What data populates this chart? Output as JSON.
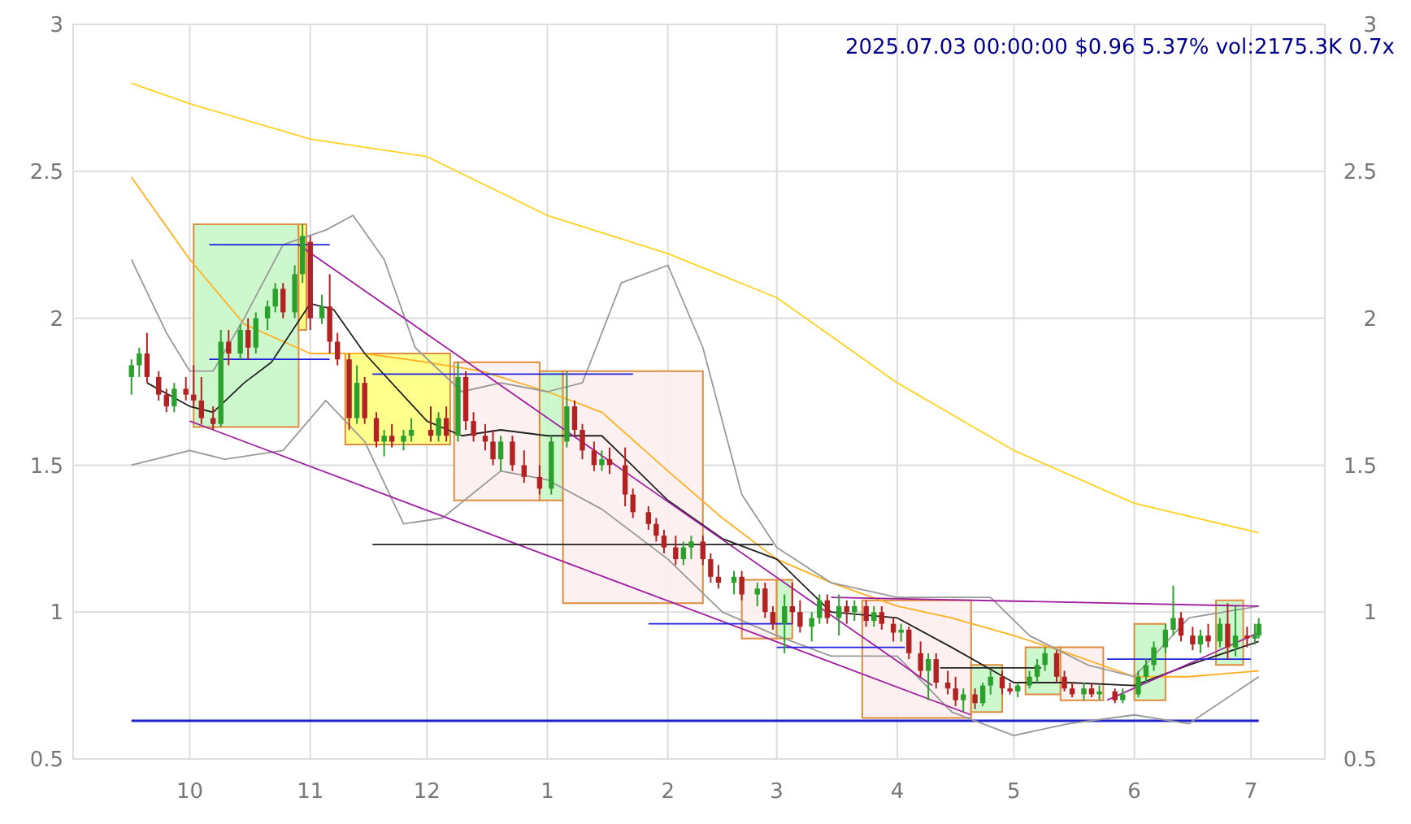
{
  "chart_data": {
    "type": "candlestick",
    "title": "2025.07.03 00:00:00 $0.96 5.37% vol:2175.3K 0.7x",
    "xlim": [
      "2024-09-01",
      "2025-07-20"
    ],
    "xticks": [
      {
        "value": "2024-10-01",
        "label": "10"
      },
      {
        "value": "2024-11-01",
        "label": "11"
      },
      {
        "value": "2024-12-01",
        "label": "12"
      },
      {
        "value": "2025-01-01",
        "label": "1"
      },
      {
        "value": "2025-02-01",
        "label": "2"
      },
      {
        "value": "2025-03-01",
        "label": "3"
      },
      {
        "value": "2025-04-01",
        "label": "4"
      },
      {
        "value": "2025-05-01",
        "label": "5"
      },
      {
        "value": "2025-06-01",
        "label": "6"
      },
      {
        "value": "2025-07-01",
        "label": "7"
      }
    ],
    "ylim": [
      0.5,
      3.0
    ],
    "yticks": [
      0.5,
      1.0,
      1.5,
      2.0,
      2.5,
      3.0
    ],
    "y2lim": [
      0.5,
      3.0
    ],
    "y2ticks": [
      0.5,
      1.0,
      1.5,
      2.0,
      2.5,
      3.0
    ],
    "grid": true,
    "ref_lines": [
      {
        "axis": "y",
        "value": 0.63,
        "color": "#1f1fd0"
      }
    ],
    "series": [
      {
        "type": "area",
        "color": "#c8f7c8",
        "x": [
          "2024-10-02",
          "2024-10-02",
          "2024-10-29",
          "2024-10-29",
          "2024-10-02"
        ],
        "values": [
          1.63,
          2.32,
          2.32,
          1.63,
          1.63
        ]
      },
      {
        "type": "area",
        "color": "#ffff80",
        "x": [
          "2024-10-29",
          "2024-10-29",
          "2024-10-31",
          "2024-10-31",
          "2024-10-29"
        ],
        "values": [
          1.96,
          2.32,
          2.32,
          1.96,
          1.96
        ]
      },
      {
        "type": "area",
        "color": "#ffff80",
        "x": [
          "2024-11-10",
          "2024-11-10",
          "2024-12-07",
          "2024-12-07",
          "2024-11-10"
        ],
        "values": [
          1.57,
          1.88,
          1.88,
          1.57,
          1.57
        ]
      },
      {
        "type": "area",
        "color": "#fdeeee",
        "x": [
          "2024-12-08",
          "2024-12-08",
          "2024-12-30",
          "2024-12-30",
          "2024-12-08"
        ],
        "values": [
          1.38,
          1.85,
          1.85,
          1.38,
          1.38
        ]
      },
      {
        "type": "area",
        "color": "#c8f7c8",
        "x": [
          "2024-12-30",
          "2024-12-30",
          "2025-01-05",
          "2025-01-05",
          "2024-12-30"
        ],
        "values": [
          1.38,
          1.82,
          1.82,
          1.38,
          1.38
        ]
      },
      {
        "type": "area",
        "color": "#fdeeee",
        "x": [
          "2025-01-05",
          "2025-01-05",
          "2025-02-10",
          "2025-02-10",
          "2025-01-05"
        ],
        "values": [
          1.03,
          1.82,
          1.82,
          1.03,
          1.03
        ]
      },
      {
        "type": "area",
        "color": "#fdeeee",
        "x": [
          "2025-02-20",
          "2025-02-20",
          "2025-03-01",
          "2025-03-01",
          "2025-02-20"
        ],
        "values": [
          0.91,
          1.11,
          1.11,
          0.91,
          0.91
        ]
      },
      {
        "type": "area",
        "color": "#c8f7c8",
        "x": [
          "2025-03-01",
          "2025-03-01",
          "2025-03-05",
          "2025-03-05",
          "2025-03-01"
        ],
        "values": [
          0.91,
          1.11,
          1.11,
          0.91,
          0.91
        ]
      },
      {
        "type": "area",
        "color": "#fdeeee",
        "x": [
          "2025-03-23",
          "2025-03-23",
          "2025-04-20",
          "2025-04-20",
          "2025-03-23"
        ],
        "values": [
          0.64,
          1.04,
          1.04,
          0.64,
          0.64
        ]
      },
      {
        "type": "area",
        "color": "#c8f7c8",
        "x": [
          "2025-04-20",
          "2025-04-20",
          "2025-04-28",
          "2025-04-28",
          "2025-04-20"
        ],
        "values": [
          0.66,
          0.82,
          0.82,
          0.66,
          0.66
        ]
      },
      {
        "type": "area",
        "color": "#c8f7c8",
        "x": [
          "2025-05-04",
          "2025-05-04",
          "2025-05-13",
          "2025-05-13",
          "2025-05-04"
        ],
        "values": [
          0.72,
          0.88,
          0.88,
          0.72,
          0.72
        ]
      },
      {
        "type": "area",
        "color": "#fdeeee",
        "x": [
          "2025-05-13",
          "2025-05-13",
          "2025-05-24",
          "2025-05-24",
          "2025-05-13"
        ],
        "values": [
          0.7,
          0.88,
          0.88,
          0.7,
          0.7
        ]
      },
      {
        "type": "area",
        "color": "#c8f7c8",
        "x": [
          "2025-06-01",
          "2025-06-01",
          "2025-06-09",
          "2025-06-09",
          "2025-06-01"
        ],
        "values": [
          0.7,
          0.96,
          0.96,
          0.7,
          0.7
        ]
      },
      {
        "type": "area",
        "color": "#c8f7c8",
        "x": [
          "2025-06-22",
          "2025-06-22",
          "2025-06-29",
          "2025-06-29",
          "2025-06-22"
        ],
        "values": [
          0.82,
          1.04,
          1.04,
          0.82,
          0.82
        ]
      },
      {
        "type": "line",
        "color": "#ffd21f",
        "x": [
          "2024-09-16",
          "2024-10-01",
          "2024-11-01",
          "2024-12-01",
          "2025-01-01",
          "2025-02-01",
          "2025-03-01",
          "2025-04-01",
          "2025-05-01",
          "2025-06-01",
          "2025-07-03"
        ],
        "values": [
          2.8,
          2.73,
          2.61,
          2.55,
          2.35,
          2.22,
          2.07,
          1.78,
          1.55,
          1.37,
          1.27
        ]
      },
      {
        "type": "line",
        "color": "#ffb020",
        "x": [
          "2024-09-16",
          "2024-10-01",
          "2024-10-15",
          "2024-11-01",
          "2024-11-15",
          "2024-12-01",
          "2024-12-15",
          "2025-01-01",
          "2025-01-15",
          "2025-02-01",
          "2025-02-15",
          "2025-03-01",
          "2025-03-15",
          "2025-04-01",
          "2025-04-15",
          "2025-05-01",
          "2025-05-15",
          "2025-06-01",
          "2025-06-15",
          "2025-07-03"
        ],
        "values": [
          2.48,
          2.2,
          1.98,
          1.88,
          1.88,
          1.85,
          1.82,
          1.75,
          1.68,
          1.48,
          1.32,
          1.18,
          1.1,
          1.02,
          0.98,
          0.92,
          0.86,
          0.78,
          0.78,
          0.8
        ]
      },
      {
        "type": "line",
        "color": "#222222",
        "x": [
          "2024-09-20",
          "2024-10-01",
          "2024-10-07",
          "2024-10-15",
          "2024-10-22",
          "2024-11-01",
          "2024-11-07",
          "2024-11-15",
          "2024-12-01",
          "2024-12-10",
          "2024-12-20",
          "2025-01-01",
          "2025-01-15",
          "2025-02-01",
          "2025-02-15",
          "2025-03-01",
          "2025-03-15",
          "2025-04-01",
          "2025-04-15",
          "2025-05-01",
          "2025-05-15",
          "2025-06-01",
          "2025-06-15",
          "2025-07-03"
        ],
        "values": [
          1.78,
          1.7,
          1.68,
          1.78,
          1.85,
          2.05,
          2.03,
          1.88,
          1.65,
          1.6,
          1.62,
          1.6,
          1.6,
          1.38,
          1.25,
          1.18,
          1.0,
          0.98,
          0.88,
          0.76,
          0.76,
          0.75,
          0.82,
          0.9
        ]
      },
      {
        "type": "line",
        "color": "#999999",
        "x": [
          "2024-09-16",
          "2024-09-25",
          "2024-10-01",
          "2024-10-07",
          "2024-10-15",
          "2024-10-25",
          "2024-11-05",
          "2024-11-12",
          "2024-11-20",
          "2024-11-28",
          "2024-12-10",
          "2024-12-20",
          "2025-01-01",
          "2025-01-10",
          "2025-01-20",
          "2025-02-01",
          "2025-02-10",
          "2025-02-20",
          "2025-03-01",
          "2025-03-15",
          "2025-04-01",
          "2025-04-15",
          "2025-04-25",
          "2025-05-05",
          "2025-05-20",
          "2025-06-01",
          "2025-06-15",
          "2025-07-03"
        ],
        "values": [
          2.2,
          1.95,
          1.82,
          1.82,
          2.0,
          2.25,
          2.3,
          2.35,
          2.2,
          1.9,
          1.75,
          1.78,
          1.75,
          1.78,
          2.12,
          2.18,
          1.9,
          1.4,
          1.22,
          1.1,
          1.05,
          1.05,
          1.05,
          0.92,
          0.82,
          0.78,
          0.98,
          1.02
        ]
      },
      {
        "type": "line",
        "color": "#999999",
        "x": [
          "2024-09-16",
          "2024-10-01",
          "2024-10-10",
          "2024-10-25",
          "2024-11-05",
          "2024-11-15",
          "2024-11-25",
          "2024-12-05",
          "2024-12-20",
          "2025-01-01",
          "2025-01-15",
          "2025-02-01",
          "2025-02-15",
          "2025-03-01",
          "2025-03-15",
          "2025-04-01",
          "2025-04-15",
          "2025-05-01",
          "2025-05-15",
          "2025-06-01",
          "2025-06-15",
          "2025-07-03"
        ],
        "values": [
          1.5,
          1.55,
          1.52,
          1.55,
          1.72,
          1.58,
          1.3,
          1.32,
          1.48,
          1.45,
          1.35,
          1.18,
          1.0,
          0.92,
          0.85,
          0.85,
          0.66,
          0.58,
          0.62,
          0.65,
          0.62,
          0.78
        ]
      },
      {
        "type": "line",
        "color": "#a020a0",
        "x": [
          "2024-10-01",
          "2025-04-20"
        ],
        "values": [
          1.65,
          0.65
        ]
      },
      {
        "type": "line",
        "color": "#a020a0",
        "x": [
          "2024-10-29",
          "2025-04-10"
        ],
        "values": [
          2.25,
          0.75
        ]
      },
      {
        "type": "line",
        "color": "#a020a0",
        "x": [
          "2025-03-15",
          "2025-07-03"
        ],
        "values": [
          1.05,
          1.02
        ]
      },
      {
        "type": "line",
        "color": "#a020a0",
        "x": [
          "2025-05-25",
          "2025-07-03"
        ],
        "values": [
          0.7,
          0.93
        ]
      },
      {
        "type": "line",
        "color": "#1f1fe0",
        "x": [
          "2024-10-06",
          "2024-11-06"
        ],
        "values": [
          2.25,
          2.25
        ]
      },
      {
        "type": "line",
        "color": "#1f1fe0",
        "x": [
          "2024-10-06",
          "2024-11-06"
        ],
        "values": [
          1.86,
          1.86
        ]
      },
      {
        "type": "line",
        "color": "#1f1fe0",
        "x": [
          "2024-11-17",
          "2025-01-23"
        ],
        "values": [
          1.81,
          1.81
        ]
      },
      {
        "type": "line",
        "color": "#1f1fe0",
        "x": [
          "2025-01-27",
          "2025-03-05"
        ],
        "values": [
          0.96,
          0.96
        ]
      },
      {
        "type": "line",
        "color": "#1f1fe0",
        "x": [
          "2025-03-01",
          "2025-04-03"
        ],
        "values": [
          0.88,
          0.88
        ]
      },
      {
        "type": "line",
        "color": "#1f1fe0",
        "x": [
          "2025-05-25",
          "2025-07-01"
        ],
        "values": [
          0.84,
          0.84
        ]
      },
      {
        "type": "line",
        "color": "#222222",
        "x": [
          "2024-11-17",
          "2025-02-28"
        ],
        "values": [
          1.23,
          1.23
        ]
      },
      {
        "type": "line",
        "color": "#222222",
        "x": [
          "2025-04-12",
          "2025-05-08"
        ],
        "values": [
          0.81,
          0.81
        ]
      },
      {
        "x": [
          "2024-09-16",
          "2024-09-18",
          "2024-09-20",
          "2024-09-23",
          "2024-09-25",
          "2024-09-27",
          "2024-09-30",
          "2024-10-02",
          "2024-10-04",
          "2024-10-07",
          "2024-10-09",
          "2024-10-11",
          "2024-10-14",
          "2024-10-16",
          "2024-10-18",
          "2024-10-21",
          "2024-10-23",
          "2024-10-25",
          "2024-10-28",
          "2024-10-30",
          "2024-11-01",
          "2024-11-04",
          "2024-11-06",
          "2024-11-08",
          "2024-11-11",
          "2024-11-13",
          "2024-11-15",
          "2024-11-18",
          "2024-11-20",
          "2024-11-22",
          "2024-11-25",
          "2024-11-27",
          "2024-12-02",
          "2024-12-04",
          "2024-12-06",
          "2024-12-09",
          "2024-12-11",
          "2024-12-13",
          "2024-12-16",
          "2024-12-18",
          "2024-12-20",
          "2024-12-23",
          "2024-12-26",
          "2024-12-30",
          "2025-01-02",
          "2025-01-06",
          "2025-01-08",
          "2025-01-10",
          "2025-01-13",
          "2025-01-15",
          "2025-01-17",
          "2025-01-21",
          "2025-01-23",
          "2025-01-27",
          "2025-01-29",
          "2025-01-31",
          "2025-02-03",
          "2025-02-05",
          "2025-02-07",
          "2025-02-10",
          "2025-02-12",
          "2025-02-14",
          "2025-02-18",
          "2025-02-20",
          "2025-02-24",
          "2025-02-26",
          "2025-02-28",
          "2025-03-03",
          "2025-03-05",
          "2025-03-07",
          "2025-03-10",
          "2025-03-12",
          "2025-03-14",
          "2025-03-17",
          "2025-03-19",
          "2025-03-21",
          "2025-03-24",
          "2025-03-26",
          "2025-03-28",
          "2025-03-31",
          "2025-04-02",
          "2025-04-04",
          "2025-04-07",
          "2025-04-09",
          "2025-04-11",
          "2025-04-14",
          "2025-04-16",
          "2025-04-18",
          "2025-04-21",
          "2025-04-23",
          "2025-04-25",
          "2025-04-28",
          "2025-04-30",
          "2025-05-02",
          "2025-05-05",
          "2025-05-07",
          "2025-05-09",
          "2025-05-12",
          "2025-05-14",
          "2025-05-16",
          "2025-05-19",
          "2025-05-21",
          "2025-05-23",
          "2025-05-27",
          "2025-05-29",
          "2025-06-02",
          "2025-06-04",
          "2025-06-06",
          "2025-06-09",
          "2025-06-11",
          "2025-06-13",
          "2025-06-16",
          "2025-06-18",
          "2025-06-20",
          "2025-06-23",
          "2025-06-25",
          "2025-06-27",
          "2025-06-30",
          "2025-07-02",
          "2025-07-03"
        ],
        "ohlc": [
          [
            1.8,
            1.86,
            1.74,
            1.84
          ],
          [
            1.84,
            1.9,
            1.8,
            1.88
          ],
          [
            1.88,
            1.95,
            1.78,
            1.8
          ],
          [
            1.8,
            1.82,
            1.72,
            1.74
          ],
          [
            1.74,
            1.76,
            1.68,
            1.7
          ],
          [
            1.7,
            1.78,
            1.68,
            1.76
          ],
          [
            1.76,
            1.8,
            1.72,
            1.74
          ],
          [
            1.74,
            1.84,
            1.7,
            1.72
          ],
          [
            1.72,
            1.8,
            1.64,
            1.66
          ],
          [
            1.66,
            1.7,
            1.62,
            1.64
          ],
          [
            1.64,
            1.96,
            1.63,
            1.92
          ],
          [
            1.92,
            1.96,
            1.84,
            1.88
          ],
          [
            1.88,
            1.98,
            1.86,
            1.96
          ],
          [
            1.96,
            2.0,
            1.86,
            1.9
          ],
          [
            1.9,
            2.02,
            1.88,
            2.0
          ],
          [
            2.0,
            2.06,
            1.96,
            2.04
          ],
          [
            2.04,
            2.12,
            2.02,
            2.1
          ],
          [
            2.1,
            2.12,
            2.0,
            2.02
          ],
          [
            2.02,
            2.18,
            2.0,
            2.15
          ],
          [
            2.15,
            2.32,
            2.12,
            2.28
          ],
          [
            2.26,
            2.28,
            1.96,
            2.0
          ],
          [
            2.0,
            2.08,
            1.98,
            2.04
          ],
          [
            2.04,
            2.15,
            1.88,
            1.92
          ],
          [
            1.92,
            1.95,
            1.84,
            1.86
          ],
          [
            1.86,
            1.88,
            1.62,
            1.66
          ],
          [
            1.66,
            1.84,
            1.64,
            1.78
          ],
          [
            1.78,
            1.8,
            1.64,
            1.66
          ],
          [
            1.66,
            1.68,
            1.56,
            1.58
          ],
          [
            1.58,
            1.62,
            1.53,
            1.6
          ],
          [
            1.6,
            1.64,
            1.56,
            1.58
          ],
          [
            1.58,
            1.62,
            1.55,
            1.6
          ],
          [
            1.6,
            1.66,
            1.58,
            1.62
          ],
          [
            1.62,
            1.7,
            1.58,
            1.6
          ],
          [
            1.6,
            1.68,
            1.58,
            1.66
          ],
          [
            1.66,
            1.7,
            1.58,
            1.6
          ],
          [
            1.6,
            1.85,
            1.58,
            1.8
          ],
          [
            1.8,
            1.82,
            1.62,
            1.65
          ],
          [
            1.65,
            1.68,
            1.58,
            1.6
          ],
          [
            1.6,
            1.64,
            1.55,
            1.58
          ],
          [
            1.58,
            1.62,
            1.5,
            1.52
          ],
          [
            1.52,
            1.6,
            1.48,
            1.58
          ],
          [
            1.58,
            1.6,
            1.48,
            1.5
          ],
          [
            1.5,
            1.55,
            1.44,
            1.46
          ],
          [
            1.46,
            1.5,
            1.4,
            1.42
          ],
          [
            1.42,
            1.6,
            1.4,
            1.58
          ],
          [
            1.58,
            1.82,
            1.56,
            1.7
          ],
          [
            1.7,
            1.72,
            1.6,
            1.62
          ],
          [
            1.62,
            1.64,
            1.52,
            1.55
          ],
          [
            1.55,
            1.58,
            1.48,
            1.5
          ],
          [
            1.5,
            1.55,
            1.48,
            1.52
          ],
          [
            1.52,
            1.56,
            1.47,
            1.5
          ],
          [
            1.5,
            1.56,
            1.36,
            1.4
          ],
          [
            1.4,
            1.42,
            1.32,
            1.34
          ],
          [
            1.34,
            1.36,
            1.28,
            1.3
          ],
          [
            1.3,
            1.32,
            1.24,
            1.26
          ],
          [
            1.26,
            1.28,
            1.2,
            1.22
          ],
          [
            1.22,
            1.26,
            1.16,
            1.18
          ],
          [
            1.18,
            1.24,
            1.16,
            1.22
          ],
          [
            1.22,
            1.26,
            1.18,
            1.24
          ],
          [
            1.24,
            1.26,
            1.16,
            1.18
          ],
          [
            1.18,
            1.2,
            1.1,
            1.12
          ],
          [
            1.12,
            1.16,
            1.08,
            1.1
          ],
          [
            1.1,
            1.14,
            1.06,
            1.12
          ],
          [
            1.12,
            1.14,
            1.04,
            1.06
          ],
          [
            1.06,
            1.1,
            1.02,
            1.08
          ],
          [
            1.08,
            1.1,
            0.98,
            1.0
          ],
          [
            1.0,
            1.02,
            0.94,
            0.96
          ],
          [
            0.96,
            1.06,
            0.86,
            1.02
          ],
          [
            1.02,
            1.1,
            0.96,
            1.0
          ],
          [
            1.0,
            1.04,
            0.93,
            0.95
          ],
          [
            0.95,
            1.0,
            0.9,
            0.98
          ],
          [
            0.98,
            1.06,
            0.96,
            1.04
          ],
          [
            1.04,
            1.06,
            0.96,
            0.98
          ],
          [
            0.98,
            1.06,
            0.92,
            1.02
          ],
          [
            1.02,
            1.04,
            0.96,
            1.0
          ],
          [
            1.0,
            1.04,
            0.97,
            1.02
          ],
          [
            1.02,
            1.04,
            0.95,
            0.97
          ],
          [
            0.97,
            1.02,
            0.95,
            1.0
          ],
          [
            1.0,
            1.02,
            0.94,
            0.96
          ],
          [
            0.96,
            0.98,
            0.9,
            0.93
          ],
          [
            0.93,
            0.96,
            0.9,
            0.94
          ],
          [
            0.94,
            0.95,
            0.84,
            0.86
          ],
          [
            0.86,
            0.9,
            0.78,
            0.8
          ],
          [
            0.8,
            0.86,
            0.7,
            0.84
          ],
          [
            0.84,
            0.86,
            0.74,
            0.76
          ],
          [
            0.76,
            0.8,
            0.72,
            0.74
          ],
          [
            0.74,
            0.78,
            0.68,
            0.7
          ],
          [
            0.7,
            0.74,
            0.66,
            0.72
          ],
          [
            0.72,
            0.74,
            0.67,
            0.69
          ],
          [
            0.69,
            0.76,
            0.68,
            0.75
          ],
          [
            0.75,
            0.8,
            0.72,
            0.78
          ],
          [
            0.78,
            0.8,
            0.72,
            0.74
          ],
          [
            0.74,
            0.76,
            0.72,
            0.73
          ],
          [
            0.73,
            0.76,
            0.71,
            0.75
          ],
          [
            0.75,
            0.8,
            0.74,
            0.78
          ],
          [
            0.78,
            0.84,
            0.76,
            0.82
          ],
          [
            0.82,
            0.88,
            0.8,
            0.86
          ],
          [
            0.86,
            0.87,
            0.76,
            0.78
          ],
          [
            0.78,
            0.8,
            0.73,
            0.74
          ],
          [
            0.74,
            0.76,
            0.71,
            0.72
          ],
          [
            0.72,
            0.76,
            0.7,
            0.74
          ],
          [
            0.74,
            0.76,
            0.71,
            0.72
          ],
          [
            0.72,
            0.75,
            0.7,
            0.73
          ],
          [
            0.73,
            0.74,
            0.69,
            0.7
          ],
          [
            0.7,
            0.74,
            0.69,
            0.72
          ],
          [
            0.72,
            0.8,
            0.71,
            0.78
          ],
          [
            0.78,
            0.84,
            0.76,
            0.82
          ],
          [
            0.82,
            0.9,
            0.8,
            0.88
          ],
          [
            0.88,
            0.96,
            0.86,
            0.94
          ],
          [
            0.94,
            1.09,
            0.92,
            0.98
          ],
          [
            0.98,
            1.0,
            0.9,
            0.92
          ],
          [
            0.92,
            0.95,
            0.87,
            0.89
          ],
          [
            0.89,
            0.94,
            0.86,
            0.92
          ],
          [
            0.92,
            0.96,
            0.88,
            0.9
          ],
          [
            0.9,
            0.98,
            0.88,
            0.96
          ],
          [
            0.96,
            1.03,
            0.84,
            0.88
          ],
          [
            0.88,
            1.02,
            0.85,
            0.92
          ],
          [
            0.92,
            0.95,
            0.88,
            0.91
          ],
          [
            0.91,
            0.96,
            0.89,
            0.92
          ],
          [
            0.92,
            0.98,
            0.91,
            0.96
          ]
        ]
      }
    ]
  }
}
